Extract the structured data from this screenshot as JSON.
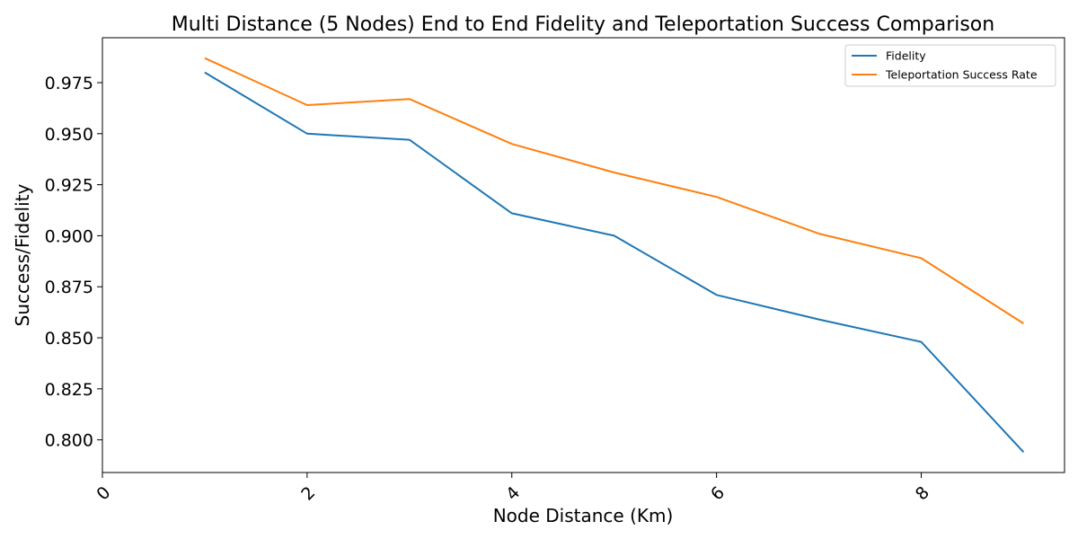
{
  "chart_data": {
    "type": "line",
    "title": "Multi Distance (5 Nodes) End to End Fidelity and Teleportation Success Comparison",
    "xlabel": "Node Distance (Km)",
    "ylabel": "Success/Fidelity",
    "xlim": [
      0,
      9.4
    ],
    "ylim": [
      0.784,
      0.997
    ],
    "xticks": [
      0,
      2,
      4,
      6,
      8
    ],
    "xtick_labels": [
      "0",
      "2",
      "4",
      "6",
      "8"
    ],
    "yticks": [
      0.8,
      0.825,
      0.85,
      0.875,
      0.9,
      0.925,
      0.95,
      0.975
    ],
    "ytick_labels": [
      "0.800",
      "0.825",
      "0.850",
      "0.875",
      "0.900",
      "0.925",
      "0.950",
      "0.975"
    ],
    "x": [
      1,
      2,
      3,
      4,
      5,
      6,
      7,
      8,
      9
    ],
    "series": [
      {
        "name": "Fidelity",
        "color": "#1f77b4",
        "values": [
          0.98,
          0.95,
          0.947,
          0.911,
          0.9,
          0.871,
          0.859,
          0.848,
          0.794
        ]
      },
      {
        "name": "Teleportation Success Rate",
        "color": "#ff7f0e",
        "values": [
          0.987,
          0.964,
          0.967,
          0.945,
          0.931,
          0.919,
          0.901,
          0.889,
          0.857
        ]
      }
    ],
    "grid": false,
    "legend_position": "top-right"
  }
}
